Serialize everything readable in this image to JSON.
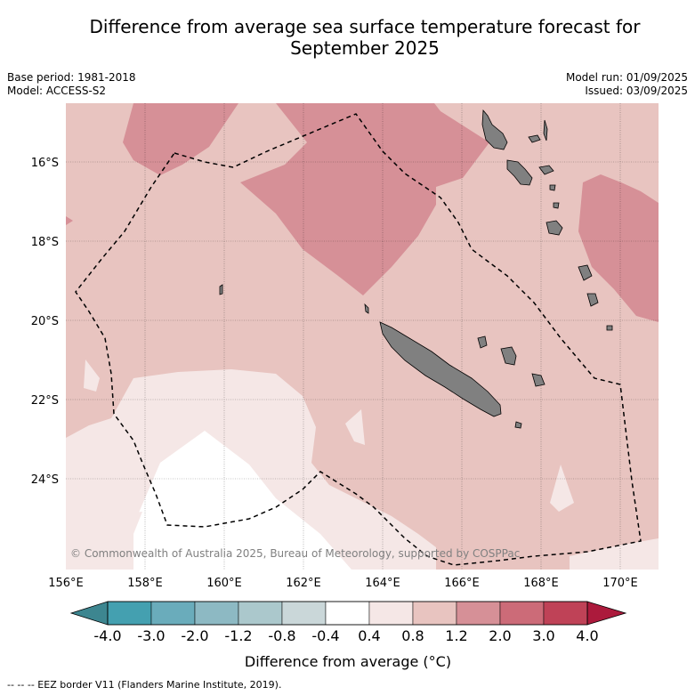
{
  "title_line1": "Difference from average sea surface temperature forecast for",
  "title_line2": "September 2025",
  "meta": {
    "base_period": "Base period: 1981-2018",
    "model": "Model: ACCESS-S2",
    "model_run": "Model run: 01/09/2025",
    "issued": "Issued: 03/09/2025"
  },
  "map": {
    "lat_labels": [
      "16°S",
      "18°S",
      "20°S",
      "22°S",
      "24°S"
    ],
    "lon_labels": [
      "156°E",
      "158°E",
      "160°E",
      "162°E",
      "164°E",
      "166°E",
      "168°E",
      "170°E"
    ],
    "copyright": "© Commonwealth of Australia 2025, Bureau of Meteorology, supported by COSPPac"
  },
  "colorbar": {
    "ticks": [
      "-4.0",
      "-3.0",
      "-2.0",
      "-1.2",
      "-0.8",
      "-0.4",
      "0.4",
      "0.8",
      "1.2",
      "2.0",
      "3.0",
      "4.0"
    ],
    "colors": [
      "#44a0b0",
      "#6aacbb",
      "#8db9c3",
      "#abc8cc",
      "#cad7d9",
      "#ffffff",
      "#f5e7e6",
      "#e8c4c0",
      "#d69097",
      "#cc6b78",
      "#bf4257"
    ],
    "low_extend_color": "#3d8690",
    "high_extend_color": "#ac1a3c",
    "label": "Difference from average (°C)"
  },
  "legend": {
    "eez": "-- -- -- EEZ border V11 (Flanders Marine Institute, 2019)."
  }
}
